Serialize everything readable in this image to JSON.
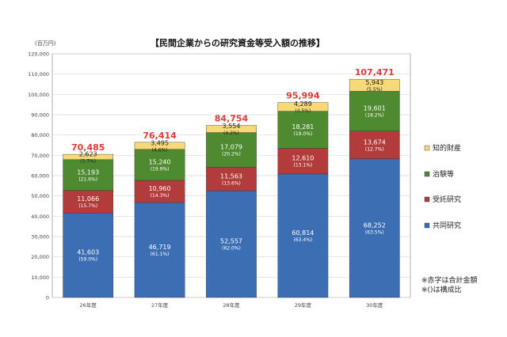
{
  "chart_data": {
    "type": "bar",
    "stacked": true,
    "title": "【民間企業からの研究資金等受入額の推移】",
    "y_unit_label": "(百万円)",
    "ylim": [
      0,
      120000
    ],
    "yticks": [
      "0",
      "10,000",
      "20,000",
      "30,000",
      "40,000",
      "50,000",
      "60,000",
      "70,000",
      "80,000",
      "90,000",
      "100,000",
      "110,000",
      "120,000"
    ],
    "grid": true,
    "legend_position": "right",
    "categories": [
      "26年度",
      "27年度",
      "28年度",
      "29年度",
      "30年度"
    ],
    "series": [
      {
        "name": "共同研究",
        "color": "#3c6eb4",
        "values": [
          41603,
          46719,
          52557,
          60814,
          68252
        ],
        "labels": [
          "41,603",
          "46,719",
          "52,557",
          "60,814",
          "68,252"
        ],
        "shares": [
          "(59.0%)",
          "(61.1%)",
          "(62.0%)",
          "(63.4%)",
          "(63.5%)"
        ]
      },
      {
        "name": "受託研究",
        "color": "#b23b3b",
        "values": [
          11066,
          10960,
          11563,
          12610,
          13674
        ],
        "labels": [
          "11,066",
          "10,960",
          "11,563",
          "12,610",
          "13,674"
        ],
        "shares": [
          "(15.7%)",
          "(14.3%)",
          "(13.6%)",
          "(13.1%)",
          "(12.7%)"
        ]
      },
      {
        "name": "治験等",
        "color": "#4e8a2f",
        "values": [
          15193,
          15240,
          17079,
          18281,
          19601
        ],
        "labels": [
          "15,193",
          "15,240",
          "17,079",
          "18,281",
          "19,601"
        ],
        "shares": [
          "(21.6%)",
          "(19.9%)",
          "(20.2%)",
          "(19.0%)",
          "(18.2%)"
        ]
      },
      {
        "name": "知的財産",
        "color": "#f7d977",
        "values": [
          2623,
          3495,
          3554,
          4289,
          5943
        ],
        "labels": [
          "2,623",
          "3,495",
          "3,554",
          "4,289",
          "5,943"
        ],
        "shares": [
          "(3.7%)",
          "(4.6%)",
          "(4.2%)",
          "(4.5%)",
          "(5.5%)"
        ]
      }
    ],
    "totals": [
      "70,485",
      "76,414",
      "84,754",
      "95,994",
      "107,471"
    ],
    "total_color": "#e03a3a",
    "notes": [
      "※赤字は合計金額",
      "※()は構成比"
    ]
  }
}
